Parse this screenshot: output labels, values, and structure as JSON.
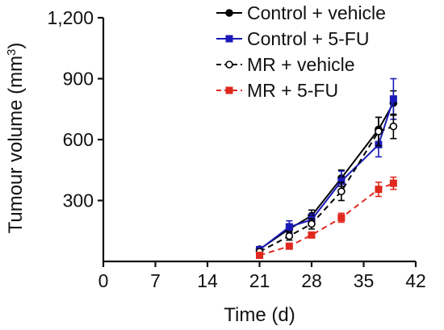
{
  "chart_data": {
    "type": "line",
    "xlabel": "Time (d)",
    "ylabel": "Tumour volume (mm",
    "ylabel_superscript": "3",
    "ylabel_suffix": ")",
    "xlim": [
      0,
      42
    ],
    "ylim": [
      0,
      1200
    ],
    "xticks": [
      0,
      7,
      14,
      21,
      28,
      35,
      42
    ],
    "yticks": [
      300,
      600,
      900,
      1200
    ],
    "ytick_labels": [
      "300",
      "600",
      "900",
      "1,200"
    ],
    "grid": false,
    "legend_position": "top-right",
    "series": [
      {
        "name": "Control + vehicle",
        "color": "#000000",
        "line_style": "solid",
        "marker": "filled-circle",
        "x": [
          21,
          25,
          28,
          32,
          37,
          39
        ],
        "y": [
          60,
          160,
          225,
          410,
          650,
          780
        ],
        "err": [
          12,
          25,
          28,
          40,
          60,
          60
        ]
      },
      {
        "name": "Control + 5-FU",
        "color": "#1a1ab8",
        "line_style": "solid",
        "marker": "filled-square",
        "x": [
          21,
          25,
          28,
          32,
          37,
          39
        ],
        "y": [
          58,
          170,
          205,
          395,
          575,
          800
        ],
        "err": [
          12,
          30,
          28,
          50,
          60,
          100
        ]
      },
      {
        "name": "MR + vehicle",
        "color": "#000000",
        "line_style": "dashed",
        "marker": "open-circle",
        "x": [
          21,
          25,
          28,
          32,
          37,
          39
        ],
        "y": [
          48,
          125,
          185,
          345,
          640,
          665
        ],
        "err": [
          10,
          20,
          25,
          45,
          70,
          60
        ]
      },
      {
        "name": "MR + 5-FU",
        "color": "#e0281e",
        "line_style": "dashed",
        "marker": "filled-square",
        "x": [
          21,
          25,
          28,
          32,
          37,
          39
        ],
        "y": [
          30,
          75,
          130,
          215,
          355,
          385
        ],
        "err": [
          8,
          10,
          12,
          22,
          35,
          30
        ]
      }
    ]
  }
}
